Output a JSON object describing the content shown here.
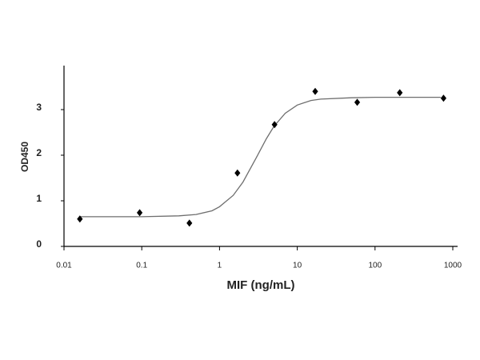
{
  "chart_data": {
    "type": "scatter",
    "xlabel": "MIF (ng/mL)",
    "ylabel": "OD450",
    "xscale": "log",
    "xlim": [
      0.01,
      1000
    ],
    "ylim": [
      0,
      4
    ],
    "xticks": [
      0.01,
      0.1,
      1,
      10,
      100,
      1000
    ],
    "yticks": [
      0,
      1,
      2,
      3
    ],
    "color": "#000000",
    "line_color": "#6e6e6e",
    "x": [
      0.016,
      0.094,
      0.41,
      1.7,
      5.1,
      17,
      59,
      208,
      760
    ],
    "values": [
      0.6,
      0.74,
      0.51,
      1.61,
      2.67,
      3.4,
      3.16,
      3.37,
      3.25
    ],
    "fit": {
      "x": [
        0.016,
        0.1,
        0.3,
        0.5,
        0.8,
        1,
        1.5,
        2,
        3,
        4,
        5,
        7,
        10,
        15,
        20,
        50,
        100,
        300,
        700
      ],
      "values": [
        0.65,
        0.65,
        0.67,
        0.7,
        0.78,
        0.87,
        1.12,
        1.41,
        1.96,
        2.36,
        2.63,
        2.92,
        3.1,
        3.2,
        3.23,
        3.26,
        3.27,
        3.27,
        3.27
      ]
    }
  }
}
